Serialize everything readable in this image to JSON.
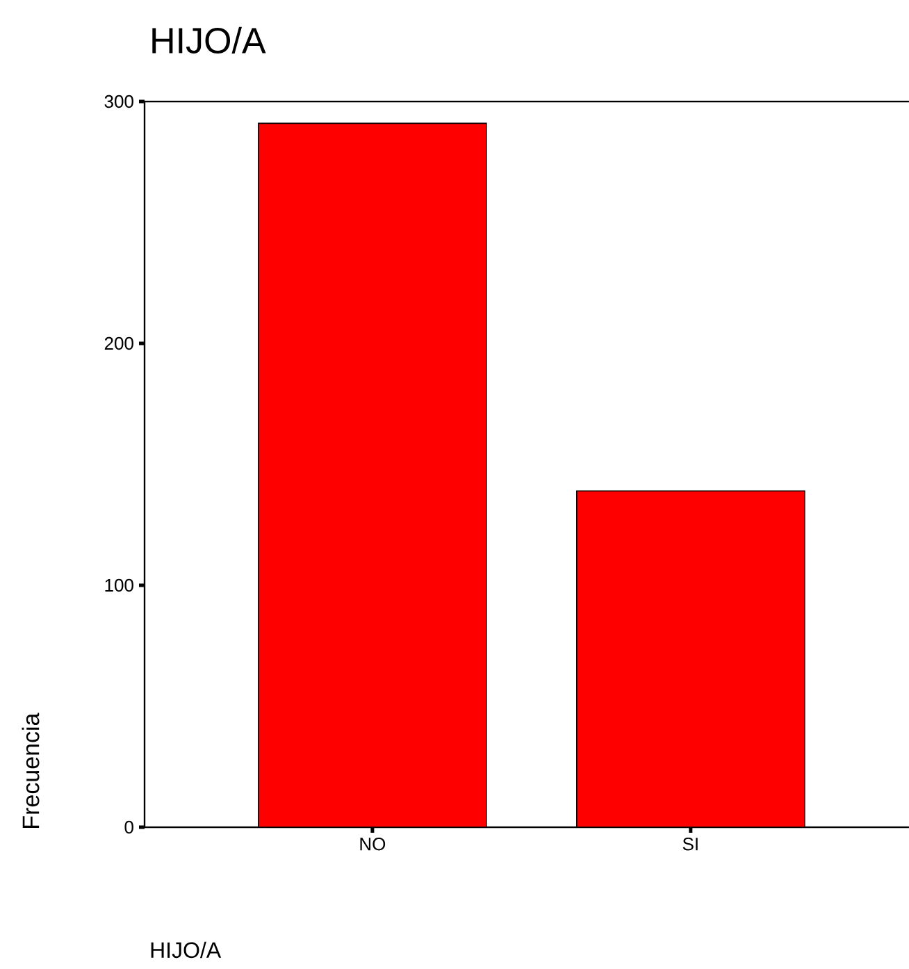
{
  "chart_data": {
    "type": "bar",
    "title": "HIJO/A",
    "xlabel": "HIJO/A",
    "ylabel": "Frecuencia",
    "categories": [
      "NO",
      "SI"
    ],
    "values": [
      291,
      139
    ],
    "color": "#ff0000",
    "ylim": [
      0,
      300
    ],
    "yticks": [
      0,
      100,
      200,
      300
    ],
    "grid": false
  }
}
